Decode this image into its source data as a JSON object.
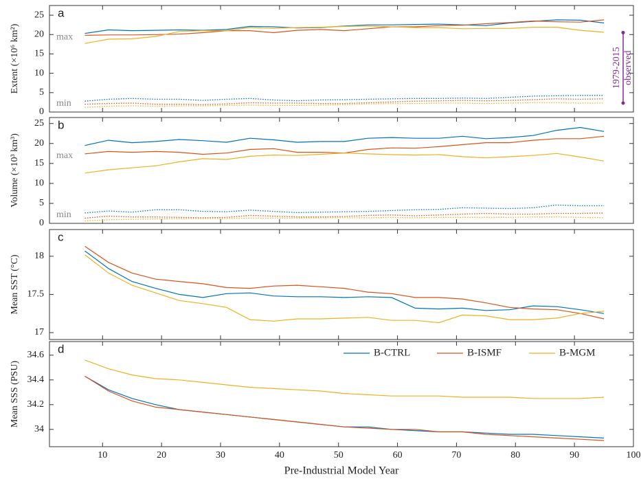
{
  "chart_data": [
    {
      "type": "line",
      "label": "a",
      "ylabel": "Extent (×10⁶ km²)",
      "xlim": [
        1,
        100
      ],
      "ylim": [
        0,
        27.5
      ],
      "yticks": [
        0,
        5,
        10,
        15,
        20,
        25
      ],
      "max_label": "max",
      "min_label": "min",
      "observed_labels": [
        "1979-2015",
        "observed"
      ],
      "observed_range": [
        2.3,
        20.5
      ],
      "observed_color": "#7e2f8e",
      "x": [
        7,
        11,
        15,
        19,
        23,
        27,
        31,
        35,
        39,
        43,
        47,
        51,
        55,
        59,
        63,
        67,
        71,
        75,
        79,
        83,
        87,
        91,
        95
      ],
      "series": [
        {
          "color": "#0072bd",
          "line_style": "solid",
          "values": [
            20.3,
            21.2,
            21.0,
            21.1,
            21.2,
            21.1,
            21.3,
            22.1,
            22.0,
            21.7,
            21.8,
            22.2,
            22.5,
            22.5,
            22.6,
            22.7,
            22.5,
            22.3,
            23.0,
            23.4,
            23.8,
            23.7,
            23.0
          ]
        },
        {
          "color": "#d95319",
          "line_style": "solid",
          "values": [
            19.8,
            19.9,
            19.9,
            20.0,
            20.1,
            20.5,
            21.0,
            21.0,
            20.5,
            21.1,
            21.3,
            21.0,
            21.5,
            22.0,
            22.0,
            22.3,
            22.4,
            22.8,
            23.1,
            23.5,
            23.3,
            23.2,
            23.8
          ]
        },
        {
          "color": "#edb120",
          "line_style": "solid",
          "values": [
            17.7,
            18.8,
            18.9,
            19.5,
            20.8,
            21.0,
            21.0,
            21.8,
            21.6,
            21.8,
            21.9,
            22.1,
            22.2,
            22.0,
            21.8,
            21.8,
            21.5,
            21.6,
            21.6,
            21.9,
            21.9,
            21.1,
            20.6
          ]
        },
        {
          "color": "#0072bd",
          "line_style": "dotted",
          "values": [
            2.8,
            3.3,
            3.5,
            3.3,
            3.3,
            3.0,
            3.3,
            3.5,
            3.1,
            2.9,
            3.1,
            3.2,
            3.3,
            3.4,
            3.5,
            3.5,
            3.6,
            3.5,
            3.8,
            4.1,
            4.2,
            4.3,
            4.3
          ]
        },
        {
          "color": "#d95319",
          "line_style": "dotted",
          "values": [
            2.0,
            2.2,
            2.3,
            2.0,
            2.0,
            1.9,
            2.1,
            2.4,
            2.3,
            2.3,
            2.2,
            2.2,
            2.4,
            2.6,
            2.8,
            2.9,
            3.0,
            2.9,
            3.0,
            3.2,
            3.4,
            3.3,
            3.4
          ]
        },
        {
          "color": "#edb120",
          "line_style": "dotted",
          "values": [
            1.2,
            1.5,
            1.6,
            1.5,
            1.6,
            1.6,
            1.7,
            1.8,
            1.7,
            1.7,
            1.8,
            1.9,
            2.1,
            2.2,
            2.2,
            2.3,
            2.3,
            2.2,
            2.3,
            2.4,
            2.4,
            2.3,
            2.3
          ]
        }
      ]
    },
    {
      "type": "line",
      "label": "b",
      "ylabel": "Volume (×10³ km³)",
      "xlim": [
        1,
        100
      ],
      "ylim": [
        0,
        26.5
      ],
      "yticks": [
        0,
        5,
        10,
        15,
        20,
        25
      ],
      "max_label": "max",
      "min_label": "min",
      "x": [
        7,
        11,
        15,
        19,
        23,
        27,
        31,
        35,
        39,
        43,
        47,
        51,
        55,
        59,
        63,
        67,
        71,
        75,
        79,
        83,
        87,
        91,
        95
      ],
      "series": [
        {
          "color": "#0072bd",
          "line_style": "solid",
          "values": [
            19.5,
            20.8,
            20.2,
            20.5,
            21.0,
            20.7,
            20.3,
            21.3,
            20.9,
            20.3,
            20.5,
            20.5,
            21.3,
            21.5,
            21.3,
            21.3,
            21.8,
            21.2,
            21.5,
            22.0,
            23.3,
            24.0,
            23.0
          ]
        },
        {
          "color": "#d95319",
          "line_style": "solid",
          "values": [
            17.4,
            18.0,
            17.8,
            18.0,
            17.8,
            17.3,
            17.6,
            18.5,
            18.7,
            17.8,
            17.8,
            17.6,
            18.5,
            18.9,
            18.8,
            19.2,
            19.7,
            20.2,
            20.2,
            20.8,
            21.2,
            21.2,
            21.8
          ]
        },
        {
          "color": "#edb120",
          "line_style": "solid",
          "values": [
            12.6,
            13.4,
            13.9,
            14.4,
            15.4,
            16.2,
            16.0,
            16.8,
            17.1,
            17.0,
            17.3,
            17.6,
            17.4,
            17.2,
            17.1,
            17.2,
            16.7,
            16.4,
            16.7,
            17.0,
            17.5,
            16.6,
            15.6
          ]
        },
        {
          "color": "#0072bd",
          "line_style": "dotted",
          "values": [
            2.6,
            3.1,
            2.8,
            3.4,
            3.4,
            3.0,
            2.9,
            3.3,
            3.0,
            2.7,
            2.8,
            2.9,
            3.0,
            3.2,
            3.4,
            3.5,
            3.9,
            3.8,
            3.7,
            3.9,
            4.6,
            4.4,
            4.4
          ]
        },
        {
          "color": "#d95319",
          "line_style": "dotted",
          "values": [
            1.3,
            1.8,
            1.6,
            1.6,
            1.5,
            1.4,
            1.5,
            2.0,
            1.8,
            1.6,
            1.6,
            1.7,
            2.0,
            2.1,
            1.9,
            2.1,
            2.3,
            2.5,
            2.3,
            2.3,
            2.5,
            2.5,
            2.6
          ]
        },
        {
          "color": "#edb120",
          "line_style": "dotted",
          "values": [
            0.6,
            0.9,
            1.0,
            1.1,
            1.2,
            1.2,
            1.2,
            1.3,
            1.3,
            1.3,
            1.4,
            1.4,
            1.4,
            1.5,
            1.4,
            1.5,
            1.5,
            1.5,
            1.5,
            1.6,
            1.6,
            1.5,
            1.4
          ]
        }
      ]
    },
    {
      "type": "line",
      "label": "c",
      "ylabel": "Mean SST (°C)",
      "xlim": [
        1,
        100
      ],
      "ylim": [
        16.91,
        18.35
      ],
      "yticks": [
        17,
        17.5,
        18
      ],
      "x": [
        7,
        11,
        15,
        19,
        23,
        27,
        31,
        35,
        39,
        43,
        47,
        51,
        55,
        59,
        63,
        67,
        71,
        75,
        79,
        83,
        87,
        91,
        95
      ],
      "series": [
        {
          "color": "#0072bd",
          "line_style": "solid",
          "values": [
            18.07,
            17.84,
            17.67,
            17.58,
            17.5,
            17.46,
            17.51,
            17.52,
            17.48,
            17.47,
            17.47,
            17.46,
            17.47,
            17.46,
            17.32,
            17.31,
            17.32,
            17.29,
            17.3,
            17.35,
            17.34,
            17.3,
            17.25
          ]
        },
        {
          "color": "#d95319",
          "line_style": "solid",
          "values": [
            18.13,
            17.92,
            17.78,
            17.7,
            17.67,
            17.64,
            17.59,
            17.58,
            17.61,
            17.62,
            17.6,
            17.58,
            17.53,
            17.51,
            17.46,
            17.46,
            17.44,
            17.39,
            17.33,
            17.31,
            17.3,
            17.25,
            17.18
          ]
        },
        {
          "color": "#edb120",
          "line_style": "solid",
          "values": [
            18.02,
            17.78,
            17.62,
            17.52,
            17.42,
            17.38,
            17.33,
            17.17,
            17.15,
            17.18,
            17.18,
            17.19,
            17.2,
            17.16,
            17.16,
            17.13,
            17.23,
            17.22,
            17.17,
            17.17,
            17.19,
            17.25,
            17.28
          ]
        }
      ]
    },
    {
      "type": "line",
      "label": "d",
      "ylabel": "Mean SSS (PSU)",
      "xlabel": "Pre-Industrial Model Year",
      "legend": "upper right",
      "xlim": [
        1,
        100
      ],
      "xticks": [
        10,
        20,
        30,
        40,
        50,
        60,
        70,
        80,
        90,
        100
      ],
      "ylim": [
        33.86,
        34.71
      ],
      "yticks": [
        34,
        34.2,
        34.4,
        34.6
      ],
      "x": [
        7,
        11,
        15,
        19,
        23,
        27,
        31,
        35,
        39,
        43,
        47,
        51,
        55,
        59,
        63,
        67,
        71,
        75,
        79,
        83,
        87,
        91,
        95
      ],
      "series": [
        {
          "name": "B-CTRL",
          "color": "#0072bd",
          "line_style": "solid",
          "values": [
            34.43,
            34.32,
            34.25,
            34.2,
            34.16,
            34.14,
            34.12,
            34.1,
            34.08,
            34.06,
            34.04,
            34.02,
            34.02,
            34.0,
            33.99,
            33.98,
            33.98,
            33.97,
            33.96,
            33.96,
            33.95,
            33.94,
            33.93
          ]
        },
        {
          "name": "B-ISMF",
          "color": "#d95319",
          "line_style": "solid",
          "values": [
            34.43,
            34.31,
            34.23,
            34.18,
            34.16,
            34.14,
            34.12,
            34.1,
            34.08,
            34.06,
            34.04,
            34.02,
            34.01,
            34.0,
            34.0,
            33.98,
            33.98,
            33.96,
            33.95,
            33.94,
            33.93,
            33.92,
            33.91
          ]
        },
        {
          "name": "B-MGM",
          "color": "#edb120",
          "line_style": "solid",
          "values": [
            34.56,
            34.49,
            34.44,
            34.41,
            34.4,
            34.38,
            34.36,
            34.34,
            34.33,
            34.32,
            34.31,
            34.29,
            34.28,
            34.27,
            34.27,
            34.27,
            34.26,
            34.26,
            34.26,
            34.25,
            34.25,
            34.25,
            34.26
          ]
        }
      ]
    }
  ]
}
